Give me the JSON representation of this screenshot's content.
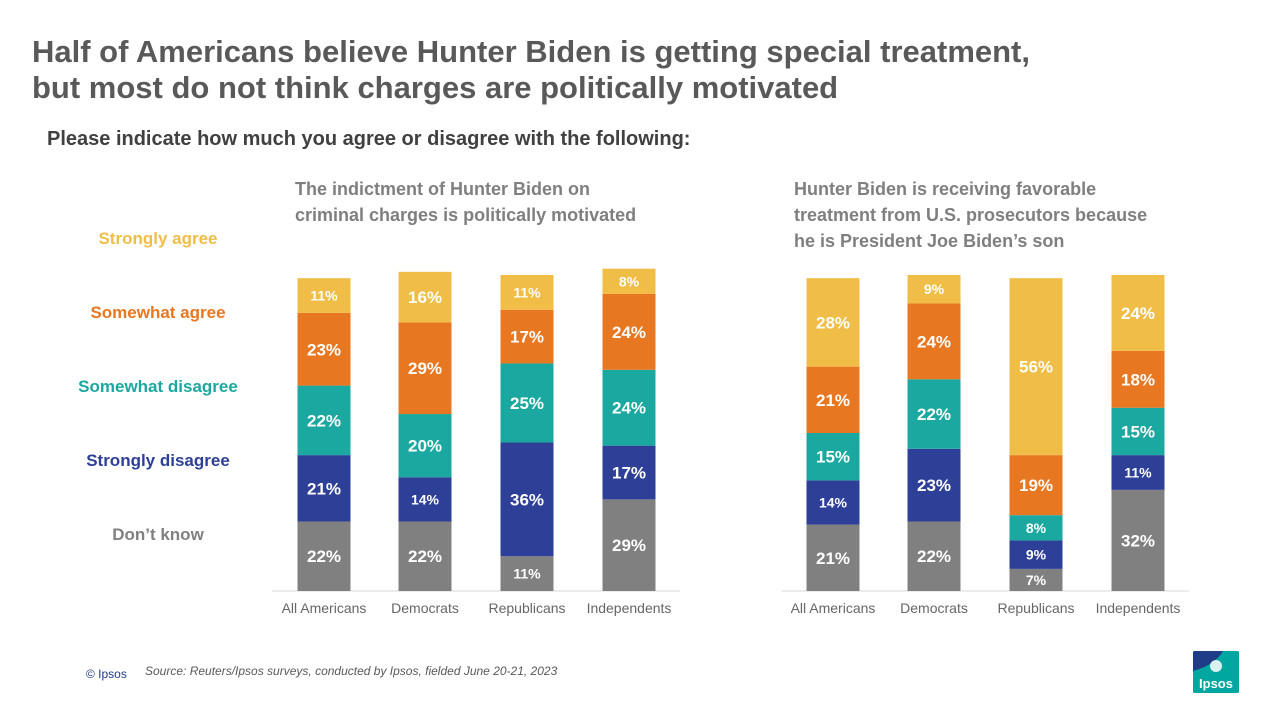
{
  "title": {
    "line1": "Half of Americans believe Hunter Biden is getting special treatment,",
    "line2": "but most do not think charges are politically motivated"
  },
  "subtitle": "Please indicate how much you agree or disagree with the following:",
  "legend": [
    {
      "label": "Strongly agree",
      "color": "#f0bd47"
    },
    {
      "label": "Somewhat agree",
      "color": "#e87722"
    },
    {
      "label": "Somewhat disagree",
      "color": "#1ba8a0"
    },
    {
      "label": "Strongly disagree",
      "color": "#2e3f98"
    },
    {
      "label": "Don’t know",
      "color": "#808080"
    }
  ],
  "chart_data": [
    {
      "type": "bar",
      "stacked": true,
      "title_line1": "The indictment of Hunter Biden on",
      "title_line2": "criminal charges is politically motivated",
      "categories": [
        "All Americans",
        "Democrats",
        "Republicans",
        "Independents"
      ],
      "series": [
        {
          "name": "Don’t know",
          "color": "#808080",
          "values": [
            22,
            22,
            11,
            29
          ]
        },
        {
          "name": "Strongly disagree",
          "color": "#2e3f98",
          "values": [
            21,
            14,
            36,
            17
          ]
        },
        {
          "name": "Somewhat disagree",
          "color": "#1ba8a0",
          "values": [
            22,
            20,
            25,
            24
          ]
        },
        {
          "name": "Somewhat agree",
          "color": "#e87722",
          "values": [
            23,
            29,
            17,
            24
          ]
        },
        {
          "name": "Strongly agree",
          "color": "#f0bd47",
          "values": [
            11,
            16,
            11,
            8
          ]
        }
      ],
      "unit": "%"
    },
    {
      "type": "bar",
      "stacked": true,
      "title_line1": "Hunter Biden is receiving favorable",
      "title_line2": "treatment from U.S. prosecutors because",
      "title_line3": "he is President Joe Biden’s son",
      "categories": [
        "All Americans",
        "Democrats",
        "Republicans",
        "Independents"
      ],
      "series": [
        {
          "name": "Don’t know",
          "color": "#808080",
          "values": [
            21,
            22,
            7,
            32
          ]
        },
        {
          "name": "Strongly disagree",
          "color": "#2e3f98",
          "values": [
            14,
            23,
            9,
            11
          ]
        },
        {
          "name": "Somewhat disagree",
          "color": "#1ba8a0",
          "values": [
            15,
            22,
            8,
            15
          ]
        },
        {
          "name": "Somewhat agree",
          "color": "#e87722",
          "values": [
            21,
            24,
            19,
            18
          ]
        },
        {
          "name": "Strongly agree",
          "color": "#f0bd47",
          "values": [
            28,
            9,
            56,
            24
          ]
        }
      ],
      "unit": "%"
    }
  ],
  "footer": {
    "copyright": "© Ipsos",
    "source": "Source: Reuters/Ipsos surveys, conducted by Ipsos, fielded June 20-21, 2023",
    "logo_text": "Ipsos"
  }
}
